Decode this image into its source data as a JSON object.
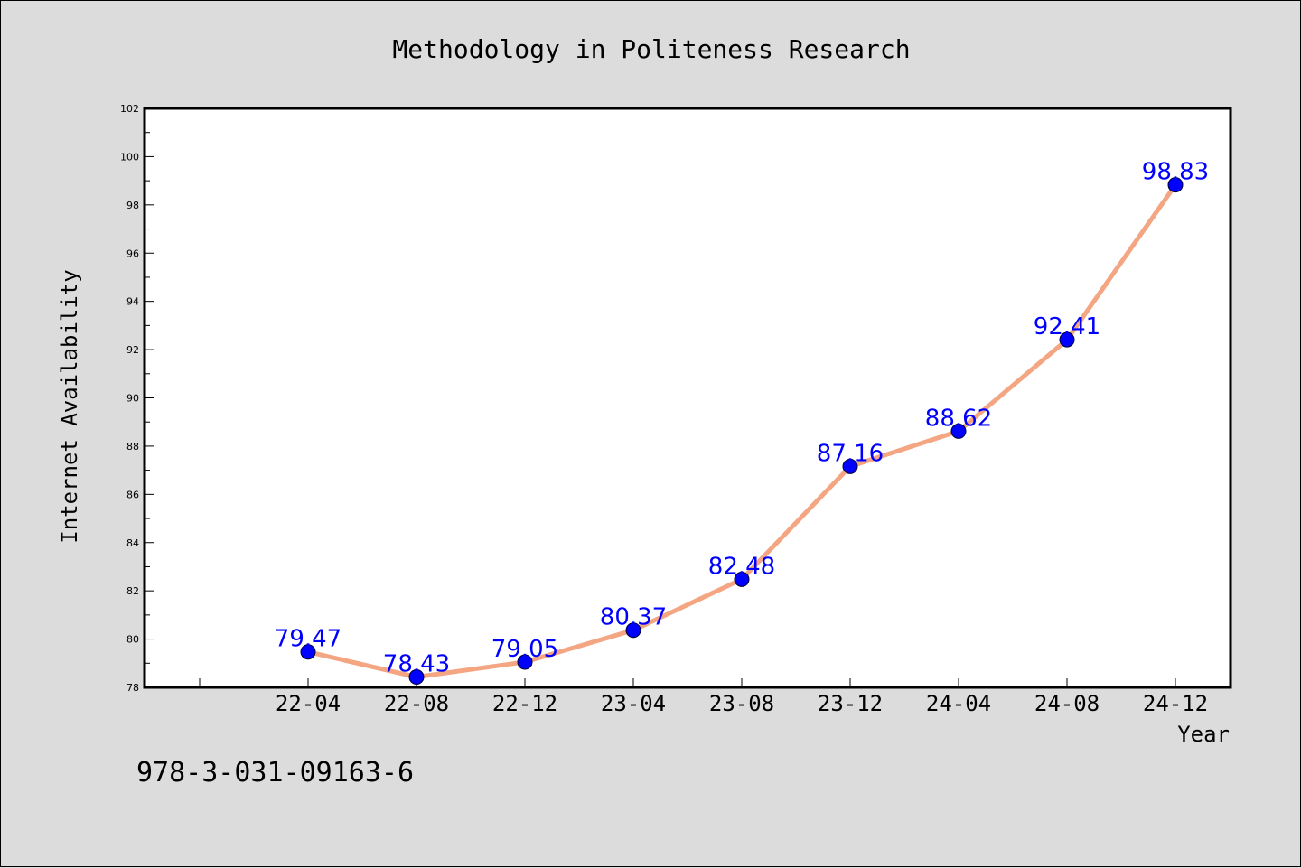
{
  "chart_data": {
    "type": "line",
    "title": "Methodology in Politeness Research",
    "xlabel": "Year",
    "ylabel": "Internet Availability",
    "categories": [
      "22-04",
      "22-08",
      "22-12",
      "23-04",
      "23-08",
      "23-12",
      "24-04",
      "24-08",
      "24-12"
    ],
    "series": [
      {
        "values": [
          79.47,
          78.43,
          79.05,
          80.37,
          82.48,
          87.16,
          88.62,
          92.41,
          98.83
        ],
        "labels": [
          "79.47",
          "78.43",
          "79.05",
          "80.37",
          "82.48",
          "87.16",
          "88.62",
          "92.41",
          "98.83"
        ]
      }
    ],
    "ylim": [
      78,
      102
    ],
    "yticks": [
      78,
      80,
      82,
      84,
      86,
      88,
      90,
      92,
      94,
      96,
      98,
      100,
      102
    ],
    "ytick_labels": [
      "78",
      "80",
      "82",
      "84",
      "86",
      "88",
      "90",
      "92",
      "94",
      "96",
      "98",
      "100",
      "102"
    ],
    "grid": false,
    "colors": {
      "line": "#f4a582",
      "marker": "#0000ff",
      "data_label": "#0000ff",
      "plot_background": "#ffffff",
      "page_background": "#dcdcdc"
    }
  },
  "footer_text": "978-3-031-09163-6"
}
